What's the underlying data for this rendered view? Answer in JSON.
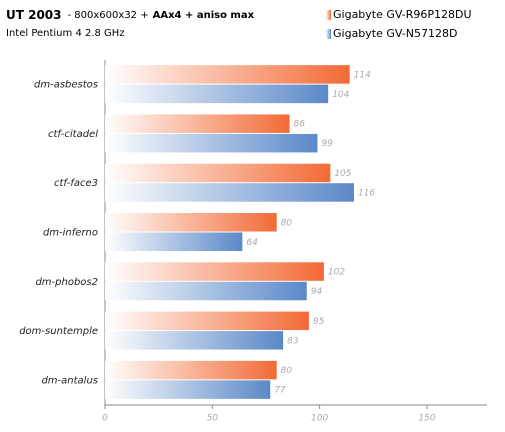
{
  "chart_data": {
    "type": "hbar",
    "title": "UT 2003",
    "title_settings": [
      "- 800x600x32 +",
      "AAx4 + aniso max"
    ],
    "subtitle": "Intel Pentium 4 2.8 GHz",
    "categories": [
      "dm-asbestos",
      "ctf-citadel",
      "ctf-face3",
      "dm-inferno",
      "dm-phobos2",
      "dom-suntemple",
      "dm-antalus"
    ],
    "series": [
      {
        "name": "Gigabyte GV-R96P128DU",
        "color": "#f26a35",
        "values": [
          114,
          86,
          105,
          80,
          102,
          95,
          80
        ]
      },
      {
        "name": "Gigabyte GV-N57128D",
        "color": "#5a88c8",
        "values": [
          104,
          99,
          116,
          64,
          94,
          83,
          77
        ]
      }
    ],
    "xlim": [
      0,
      178
    ],
    "xticks": [
      0,
      50,
      100,
      150
    ]
  }
}
